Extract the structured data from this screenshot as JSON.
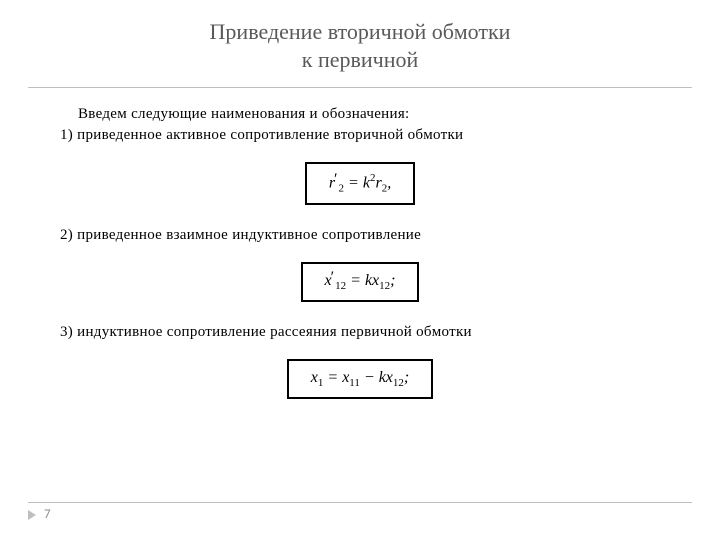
{
  "title": {
    "line1": "Приведение вторичной обмотки",
    "line2": "к первичной",
    "color": "#595959",
    "fontsize": 22
  },
  "intro": "Введем следующие наименования и обозначения:",
  "items": [
    {
      "label": "1) приведенное активное сопротивление вторичной обмотки",
      "formula_html": "r<span class='prime'>&#8242;</span><sub>2</sub> = k<sup>2</sup>r<sub>2</sub>,"
    },
    {
      "label": "2) приведенное взаимное индуктивное сопротивление",
      "formula_html": "x<span class='prime'>&#8242;</span><sub>12</sub> = kx<sub>12</sub>;"
    },
    {
      "label": "3) индуктивное сопротивление рассеяния первичной обмотки",
      "formula_html": "x<sub>1</sub> = x<sub>11</sub> &#8722; kx<sub>12</sub>;"
    }
  ],
  "body_fontsize": 15,
  "body_color": "#000000",
  "formula_border_color": "#000000",
  "hr_color": "#bfbfbf",
  "page_number": "7",
  "arrow_color": "#bfbfbf",
  "page_num_color": "#8c8c8c",
  "background_color": "#ffffff"
}
